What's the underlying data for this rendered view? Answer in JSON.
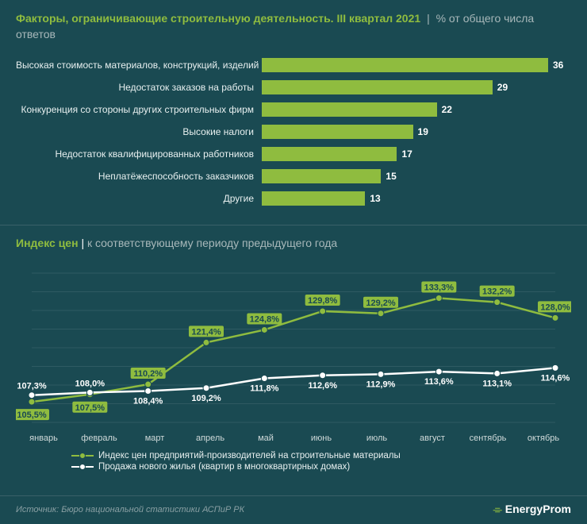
{
  "colors": {
    "background": "#1a4a52",
    "accent": "#8fbc3f",
    "text_muted": "#a8b8ba",
    "text": "#ffffff",
    "white_line": "#ffffff",
    "grid": "#2f5a62"
  },
  "section1": {
    "title": "Факторы, ограничивающие строительную деятельность. III квартал 2021",
    "subtitle": "% от общего числа ответов",
    "max_value": 36,
    "bars": [
      {
        "label": "Высокая стоимость материалов, конструкций, изделий",
        "value": 36
      },
      {
        "label": "Недостаток заказов на работы",
        "value": 29
      },
      {
        "label": "Конкуренция со стороны других строительных фирм",
        "value": 22
      },
      {
        "label": "Высокие налоги",
        "value": 19
      },
      {
        "label": "Недостаток квалифицированных работников",
        "value": 17
      },
      {
        "label": "Неплатёжеспособность заказчиков",
        "value": 15
      },
      {
        "label": "Другие",
        "value": 13
      }
    ]
  },
  "section2": {
    "title": "Индекс цен",
    "subtitle": "к соответствующему периоду предыдущего года",
    "x_labels": [
      "январь",
      "февраль",
      "март",
      "апрель",
      "май",
      "июнь",
      "июль",
      "август",
      "сентябрь",
      "октябрь"
    ],
    "y_min": 100,
    "y_max": 140,
    "grid_step": 5,
    "series": [
      {
        "name": "Индекс цен предприятий-производителей на строительные материалы",
        "color": "#8fbc3f",
        "marker_fill": "#8fbc3f",
        "label_style": "badge",
        "values": [
          105.5,
          107.5,
          110.2,
          121.4,
          124.8,
          129.8,
          129.2,
          133.3,
          132.2,
          128.0
        ],
        "display": [
          "105,5%",
          "107,5%",
          "110,2%",
          "121,4%",
          "124,8%",
          "129,8%",
          "129,2%",
          "133,3%",
          "132,2%",
          "128,0%"
        ]
      },
      {
        "name": "Продажа нового жилья (квартир в многоквартирных домах)",
        "color": "#ffffff",
        "marker_fill": "#ffffff",
        "label_style": "plain",
        "values": [
          107.3,
          108.0,
          108.4,
          109.2,
          111.8,
          112.6,
          112.9,
          113.6,
          113.1,
          114.6
        ],
        "display": [
          "107,3%",
          "108,0%",
          "108,4%",
          "109,2%",
          "111,8%",
          "112,6%",
          "112,9%",
          "113,6%",
          "113,1%",
          "114,6%"
        ]
      }
    ]
  },
  "footer": {
    "source": "Источник: Бюро национальной статистики АСПиР РК",
    "logo": "EnergyProm"
  }
}
